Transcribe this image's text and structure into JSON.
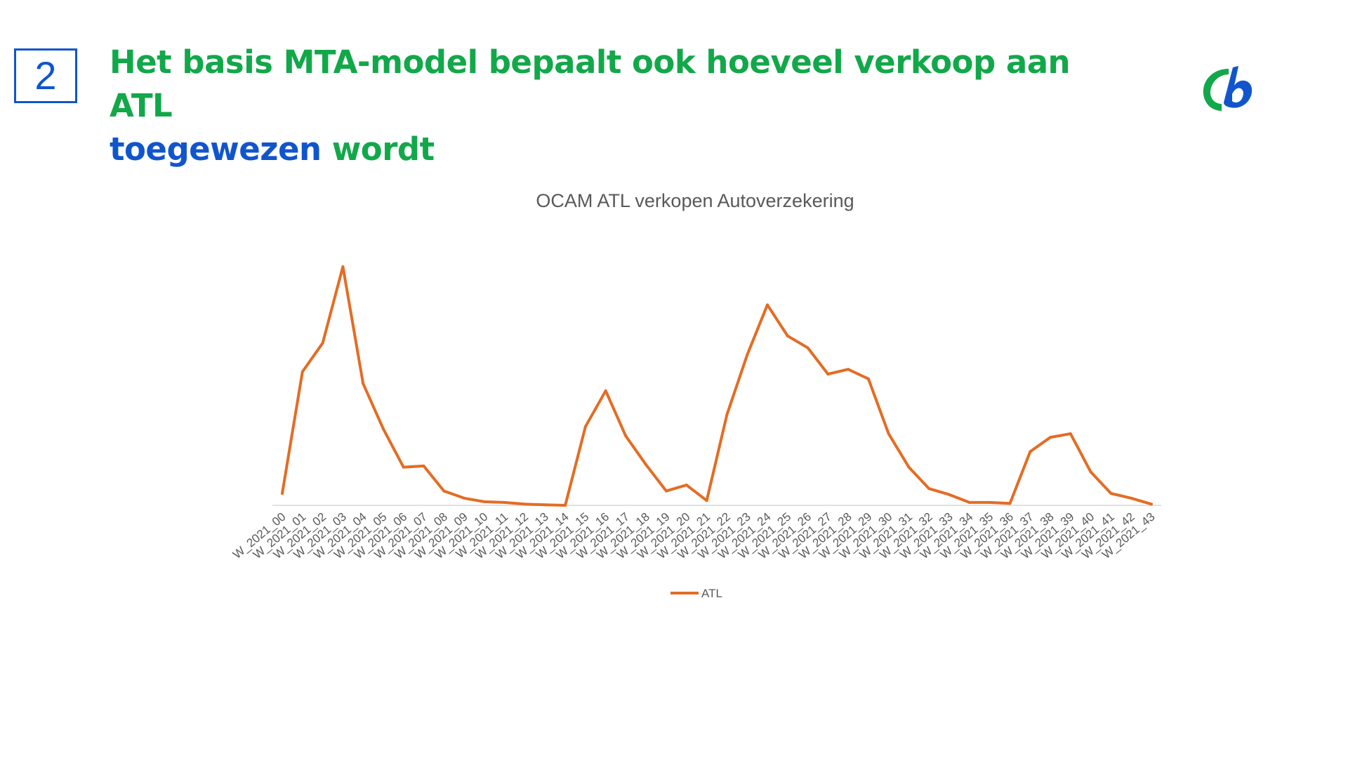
{
  "slide": {
    "number": "2",
    "title_green": "Het basis MTA-model bepaalt ook hoeveel verkoop aan ATL",
    "title_blue": "toegewezen",
    "title_green_end": "wordt"
  },
  "colors": {
    "title_green": "#12a84a",
    "title_blue": "#1155cc",
    "series_line": "#e46c24",
    "axis_line": "#d9d9d9",
    "text_gray": "#595959"
  },
  "logo": {
    "icon": "company-logo-icon"
  },
  "chart_data": {
    "type": "line",
    "title": "OCAM ATL verkopen Autoverzekering",
    "xlabel": "",
    "ylabel": "",
    "y_axis_labels_shown": false,
    "grid": false,
    "legend_position": "bottom",
    "categories": [
      "W_2021_00",
      "W_2021_01",
      "W_2021_02",
      "W_2021_03",
      "W_2021_04",
      "W_2021_05",
      "W_2021_06",
      "W_2021_07",
      "W_2021_08",
      "W_2021_09",
      "W_2021_10",
      "W_2021_11",
      "W_2021_12",
      "W_2021_13",
      "W_2021_14",
      "W_2021_15",
      "W_2021_16",
      "W_2021_17",
      "W_2021_18",
      "W_2021_19",
      "W_2021_20",
      "W_2021_21",
      "W_2021_22",
      "W_2021_23",
      "W_2021_24",
      "W_2021_25",
      "W_2021_26",
      "W_2021_27",
      "W_2021_28",
      "W_2021_29",
      "W_2021_30",
      "W_2021_31",
      "W_2021_32",
      "W_2021_33",
      "W_2021_34",
      "W_2021_35",
      "W_2021_36",
      "W_2021_37",
      "W_2021_38",
      "W_2021_39",
      "W_2021_40",
      "W_2021_41",
      "W_2021_42",
      "W_2021_43"
    ],
    "ylim": [
      0,
      100
    ],
    "series": [
      {
        "name": "ATL",
        "values": [
          5,
          56,
          68,
          100,
          51,
          32,
          16,
          16.5,
          6,
          3,
          1.5,
          1.2,
          0.5,
          0.2,
          0,
          33,
          48,
          29,
          17,
          6,
          8.5,
          2,
          38,
          63,
          84,
          71,
          66,
          55,
          57,
          53,
          30,
          16,
          7,
          4.5,
          1.2,
          1.2,
          0.8,
          22.5,
          28.5,
          30,
          14,
          5,
          3,
          0.5
        ]
      }
    ]
  }
}
